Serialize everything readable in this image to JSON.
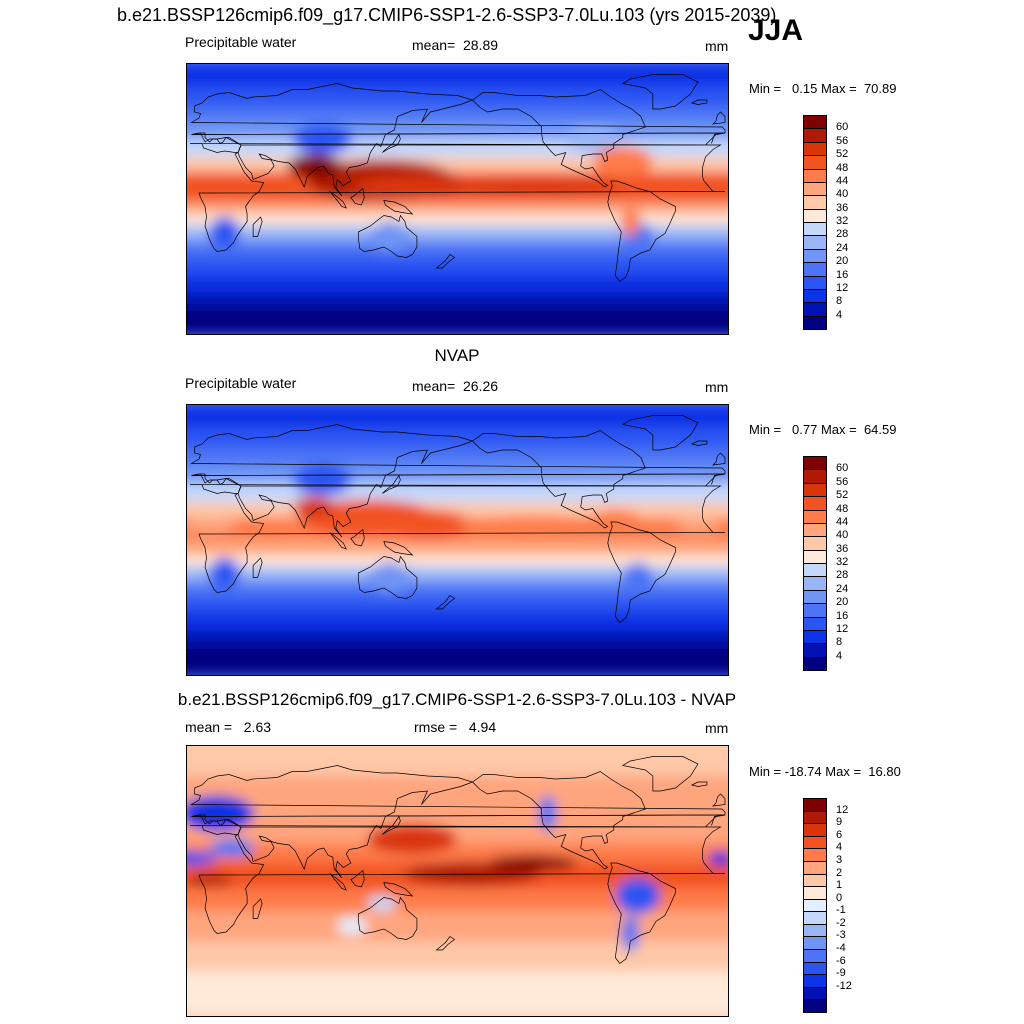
{
  "header": {
    "title": "b.e21.BSSP126cmip6.f09_g17.CMIP6-SSP1-2.6-SSP3-7.0Lu.103 (yrs 2015-2039)",
    "season": "JJA"
  },
  "colors": {
    "abs_scale": [
      "#000080",
      "#0012b4",
      "#0c33e6",
      "#2a55f3",
      "#4c74f4",
      "#7095f4",
      "#98b6f7",
      "#c4d8fb",
      "#ffe9d8",
      "#ffc8a7",
      "#ffa57e",
      "#ff7c4a",
      "#f25322",
      "#d9350a",
      "#b01a04",
      "#7f0000"
    ],
    "diff_scale": [
      "#000080",
      "#0012b4",
      "#0c33e6",
      "#2a55f3",
      "#4c74f4",
      "#7095f4",
      "#98b6f7",
      "#c4d8fb",
      "#e4efff",
      "#ffe9d8",
      "#ffc8a7",
      "#ffa57e",
      "#ff7c4a",
      "#f25322",
      "#d9350a",
      "#b01a04",
      "#7f0000"
    ]
  },
  "chart_data": [
    {
      "type": "heatmap",
      "title": "",
      "variable": "Precipitable water",
      "mean_label": "mean=",
      "mean_value": "28.89",
      "units": "mm",
      "min_label": "Min =",
      "min_value": "0.15",
      "max_label": "Max =",
      "max_value": "70.89",
      "colorbar_levels": [
        "60",
        "56",
        "52",
        "48",
        "44",
        "40",
        "36",
        "32",
        "28",
        "24",
        "20",
        "16",
        "12",
        "8",
        "4"
      ],
      "projection": "cylindrical equidistant, lon 0–360"
    },
    {
      "type": "heatmap",
      "title": "NVAP",
      "variable": "Precipitable water",
      "mean_label": "mean=",
      "mean_value": "26.26",
      "units": "mm",
      "min_label": "Min =",
      "min_value": "0.77",
      "max_label": "Max =",
      "max_value": "64.59",
      "colorbar_levels": [
        "60",
        "56",
        "52",
        "48",
        "44",
        "40",
        "36",
        "32",
        "28",
        "24",
        "20",
        "16",
        "12",
        "8",
        "4"
      ],
      "projection": "cylindrical equidistant, lon 0–360"
    },
    {
      "type": "heatmap",
      "title": "b.e21.BSSP126cmip6.f09_g17.CMIP6-SSP1-2.6-SSP3-7.0Lu.103 - NVAP",
      "mean_label": "mean =",
      "mean_value": "2.63",
      "rmse_label": "rmse =",
      "rmse_value": "4.94",
      "units": "mm",
      "min_label": "Min =",
      "min_value": "-18.74",
      "max_label": "Max =",
      "max_value": "16.80",
      "colorbar_levels": [
        "12",
        "9",
        "6",
        "4",
        "3",
        "2",
        "1",
        "0",
        "-1",
        "-2",
        "-3",
        "-4",
        "-6",
        "-9",
        "-12"
      ],
      "projection": "cylindrical equidistant, lon 0–360"
    }
  ]
}
